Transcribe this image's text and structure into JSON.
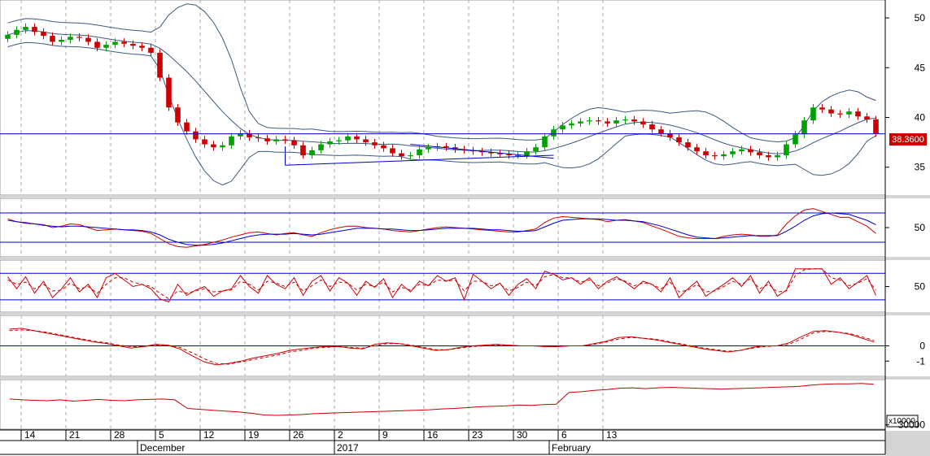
{
  "chart_data": [
    {
      "type": "candlestick",
      "panel": "price",
      "yticks": [
        35,
        40,
        45,
        50
      ],
      "ylim": [
        32.2,
        51.8
      ],
      "last_price_label": "38.3600",
      "horizontal_line": 38.36,
      "indicators": [
        "Bollinger Bands",
        "trend lines"
      ],
      "colors": {
        "up": "#00a000",
        "down": "#cc0000",
        "bands": "#3a5a80",
        "level_line": "#0000cc",
        "price_label_bg": "#cc0000"
      },
      "close_series": [
        48.3,
        48.8,
        49.1,
        48.6,
        48.2,
        47.6,
        47.8,
        48.1,
        48.0,
        47.6,
        47.0,
        47.3,
        47.6,
        47.4,
        47.2,
        47.0,
        46.5,
        44.0,
        41.0,
        39.5,
        38.6,
        37.8,
        37.3,
        37.0,
        37.2,
        38.1,
        38.4,
        38.0,
        37.9,
        37.6,
        37.8,
        37.7,
        37.2,
        36.2,
        36.7,
        37.3,
        37.6,
        37.7,
        38.1,
        37.8,
        37.5,
        37.2,
        36.9,
        36.4,
        36.1,
        36.2,
        36.8,
        37.0,
        37.1,
        37.0,
        36.8,
        36.7,
        36.6,
        36.5,
        36.4,
        36.3,
        36.2,
        36.2,
        36.6,
        37.0,
        38.1,
        38.8,
        39.2,
        39.4,
        39.6,
        39.7,
        39.6,
        39.4,
        39.7,
        39.8,
        39.6,
        39.3,
        38.8,
        38.4,
        38.0,
        37.5,
        37.0,
        36.6,
        36.2,
        36.1,
        36.3,
        36.6,
        36.8,
        36.5,
        36.2,
        36.0,
        36.2,
        37.3,
        38.3,
        39.7,
        41.0,
        40.8,
        40.4,
        40.3,
        40.6,
        40.1,
        39.8,
        38.4
      ],
      "x_labels": [
        "14",
        "21",
        "28",
        "5",
        "12",
        "19",
        "26",
        "2",
        "9",
        "16",
        "23",
        "30",
        "6",
        "13"
      ],
      "x_label_index": [
        3,
        8,
        13,
        18,
        23,
        28,
        33,
        38,
        43,
        48,
        53,
        58,
        63,
        68
      ],
      "month_labels": [
        "December",
        "2017",
        "February"
      ],
      "month_label_index": [
        16,
        38,
        62
      ]
    },
    {
      "type": "line",
      "panel": "oscillator-1",
      "yticks": [
        50
      ],
      "ylim": [
        10,
        90
      ],
      "guide_levels": [
        70,
        30
      ],
      "series": [
        {
          "values": [
            62,
            58,
            57,
            55,
            54,
            50,
            52,
            55,
            54,
            50,
            46,
            47,
            48,
            47,
            46,
            45,
            42,
            35,
            28,
            24,
            23,
            25,
            27,
            30,
            33,
            37,
            40,
            43,
            44,
            42,
            40,
            42,
            43,
            40,
            38,
            43,
            47,
            50,
            52,
            52,
            50,
            49,
            48,
            46,
            45,
            44,
            46,
            48,
            50,
            51,
            50,
            49,
            48,
            47,
            46,
            45,
            44,
            44,
            46,
            48,
            57,
            63,
            65,
            64,
            63,
            62,
            61,
            58,
            60,
            61,
            59,
            57,
            52,
            48,
            43,
            38,
            36,
            35,
            35,
            35,
            38,
            40,
            41,
            40,
            38,
            38,
            40,
            55,
            66,
            74,
            76,
            72,
            68,
            64,
            64,
            58,
            52,
            42
          ]
        },
        {
          "values": [
            60,
            58,
            56,
            55,
            53,
            52,
            51,
            52,
            52,
            51,
            50,
            49,
            48,
            47,
            47,
            46,
            44,
            40,
            34,
            30,
            27,
            26,
            26,
            27,
            29,
            32,
            35,
            38,
            40,
            41,
            41,
            41,
            42,
            41,
            40,
            41,
            43,
            45,
            47,
            49,
            49,
            49,
            48,
            48,
            47,
            46,
            46,
            47,
            48,
            49,
            49,
            49,
            49,
            48,
            47,
            47,
            46,
            45,
            45,
            46,
            51,
            56,
            60,
            61,
            62,
            62,
            62,
            61,
            60,
            60,
            59,
            58,
            55,
            52,
            48,
            44,
            40,
            37,
            36,
            35,
            36,
            37,
            38,
            39,
            39,
            39,
            39,
            45,
            52,
            60,
            66,
            69,
            70,
            69,
            68,
            64,
            60,
            54
          ]
        }
      ]
    },
    {
      "type": "line",
      "panel": "oscillator-2",
      "yticks": [
        50
      ],
      "ylim": [
        -8,
        110
      ],
      "guide_levels": [
        80,
        20
      ],
      "series": [
        {
          "values": [
            72,
            45,
            72,
            35,
            62,
            25,
            45,
            70,
            38,
            55,
            25,
            70,
            80,
            65,
            50,
            55,
            45,
            22,
            15,
            55,
            30,
            42,
            50,
            28,
            40,
            45,
            75,
            50,
            35,
            75,
            55,
            45,
            70,
            30,
            62,
            75,
            40,
            70,
            58,
            30,
            62,
            48,
            68,
            25,
            55,
            38,
            62,
            52,
            75,
            62,
            70,
            20,
            78,
            62,
            45,
            58,
            30,
            55,
            68,
            45,
            85,
            78,
            65,
            70,
            55,
            70,
            45,
            62,
            72,
            60,
            45,
            62,
            55,
            38,
            70,
            25,
            45,
            62,
            28,
            42,
            55,
            70,
            50,
            75,
            35,
            62,
            28,
            42,
            90,
            90,
            90,
            90,
            55,
            70,
            45,
            60,
            75,
            30
          ]
        },
        {
          "values": [
            65,
            55,
            60,
            45,
            55,
            40,
            42,
            58,
            45,
            50,
            35,
            55,
            70,
            70,
            60,
            55,
            50,
            35,
            22,
            40,
            35,
            40,
            45,
            38,
            40,
            42,
            62,
            55,
            42,
            62,
            58,
            50,
            60,
            40,
            52,
            65,
            50,
            60,
            58,
            42,
            55,
            50,
            60,
            38,
            48,
            42,
            55,
            52,
            65,
            62,
            65,
            40,
            62,
            62,
            52,
            55,
            40,
            48,
            60,
            52,
            72,
            78,
            70,
            70,
            60,
            65,
            52,
            58,
            68,
            62,
            52,
            58,
            55,
            45,
            60,
            38,
            42,
            55,
            38,
            40,
            50,
            62,
            55,
            68,
            45,
            55,
            38,
            40,
            75,
            88,
            90,
            90,
            70,
            65,
            52,
            58,
            68,
            42
          ]
        }
      ]
    },
    {
      "type": "line",
      "panel": "oscillator-3",
      "yticks": [
        0,
        -1
      ],
      "ylim": [
        -2,
        2
      ],
      "series": [
        {
          "values": [
            1.1,
            1.15,
            1.0,
            0.85,
            0.7,
            0.55,
            0.4,
            0.25,
            0.15,
            0.0,
            -0.15,
            -0.05,
            0.1,
            0.05,
            -0.2,
            -0.65,
            -1.05,
            -1.25,
            -1.15,
            -1.0,
            -0.8,
            -0.65,
            -0.5,
            -0.3,
            -0.2,
            -0.1,
            -0.05,
            -0.05,
            -0.15,
            -0.2,
            0.1,
            0.2,
            0.15,
            0.0,
            -0.15,
            -0.3,
            -0.25,
            -0.1,
            0.0,
            0.05,
            0.1,
            0.05,
            0.0,
            0.0,
            -0.05,
            -0.05,
            0.0,
            0.0,
            0.15,
            0.3,
            0.55,
            0.6,
            0.5,
            0.4,
            0.25,
            0.1,
            -0.05,
            -0.2,
            -0.3,
            -0.4,
            -0.3,
            -0.1,
            0.0,
            0.0,
            0.2,
            0.6,
            0.95,
            1.0,
            0.9,
            0.75,
            0.5,
            0.25
          ]
        },
        {
          "values": [
            1.0,
            1.05,
            1.0,
            0.9,
            0.75,
            0.6,
            0.45,
            0.3,
            0.2,
            0.05,
            -0.05,
            -0.05,
            0.05,
            0.05,
            -0.1,
            -0.45,
            -0.85,
            -1.15,
            -1.2,
            -1.05,
            -0.9,
            -0.75,
            -0.6,
            -0.4,
            -0.3,
            -0.15,
            -0.1,
            -0.05,
            -0.1,
            -0.15,
            0.0,
            0.15,
            0.15,
            0.05,
            -0.1,
            -0.25,
            -0.25,
            -0.15,
            -0.05,
            0.0,
            0.05,
            0.05,
            0.0,
            0.0,
            -0.05,
            -0.05,
            0.0,
            0.0,
            0.1,
            0.25,
            0.45,
            0.55,
            0.5,
            0.45,
            0.3,
            0.15,
            0.0,
            -0.15,
            -0.25,
            -0.35,
            -0.3,
            -0.15,
            -0.05,
            0.0,
            0.1,
            0.45,
            0.85,
            0.95,
            0.9,
            0.8,
            0.6,
            0.35
          ]
        }
      ]
    },
    {
      "type": "line",
      "panel": "volume",
      "yticks": [
        30000
      ],
      "ylim": [
        29000,
        40500
      ],
      "scale_label": "x10000",
      "series": [
        {
          "values": [
            36000,
            35800,
            35700,
            35600,
            35800,
            35500,
            35700,
            35900,
            35700,
            35600,
            35800,
            35900,
            36000,
            35800,
            33800,
            33600,
            33400,
            33200,
            33000,
            32700,
            32300,
            32200,
            32300,
            32400,
            32600,
            32700,
            32800,
            32900,
            33000,
            33100,
            33200,
            33300,
            33400,
            33500,
            33700,
            33800,
            34000,
            34200,
            34300,
            34400,
            34600,
            34500,
            34700,
            34800,
            37500,
            37700,
            38000,
            38200,
            38500,
            38600,
            38400,
            38600,
            38700,
            38600,
            38500,
            38400,
            38300,
            38400,
            38500,
            38600,
            38700,
            38800,
            38900,
            39200,
            39400,
            39500,
            39500,
            39600,
            39400
          ]
        }
      ]
    }
  ]
}
